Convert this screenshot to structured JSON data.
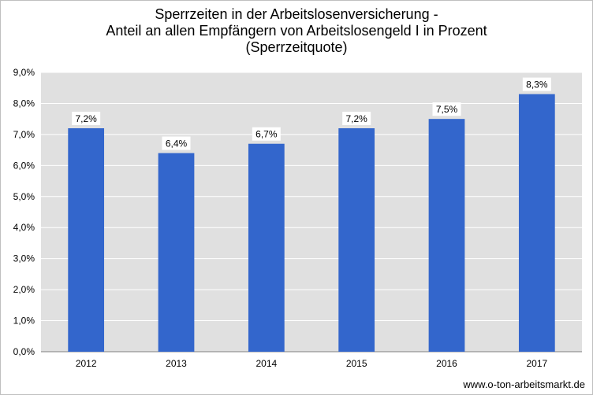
{
  "chart_data": {
    "type": "bar",
    "title_lines": [
      "Sperrzeiten in der Arbeitslosenversicherung -",
      "Anteil an allen Empfängern von Arbeitslosengeld I in Prozent",
      "(Sperrzeitquote)"
    ],
    "categories": [
      "2012",
      "2013",
      "2014",
      "2015",
      "2016",
      "2017"
    ],
    "values": [
      7.2,
      6.4,
      6.7,
      7.2,
      7.5,
      8.3
    ],
    "data_labels": [
      "7,2%",
      "6,4%",
      "6,7%",
      "7,2%",
      "7,5%",
      "8,3%"
    ],
    "ylim": [
      0,
      9
    ],
    "yticks": [
      0,
      1,
      2,
      3,
      4,
      5,
      6,
      7,
      8,
      9
    ],
    "ytick_labels": [
      "0,0%",
      "1,0%",
      "2,0%",
      "3,0%",
      "4,0%",
      "5,0%",
      "6,0%",
      "7,0%",
      "8,0%",
      "9,0%"
    ],
    "grid": true,
    "bar_color": "#3366cc",
    "plot_background": "#e0e0e0",
    "gridline_color": "#ffffff"
  },
  "footer": {
    "source": "www.o-ton-arbeitsmarkt.de"
  }
}
